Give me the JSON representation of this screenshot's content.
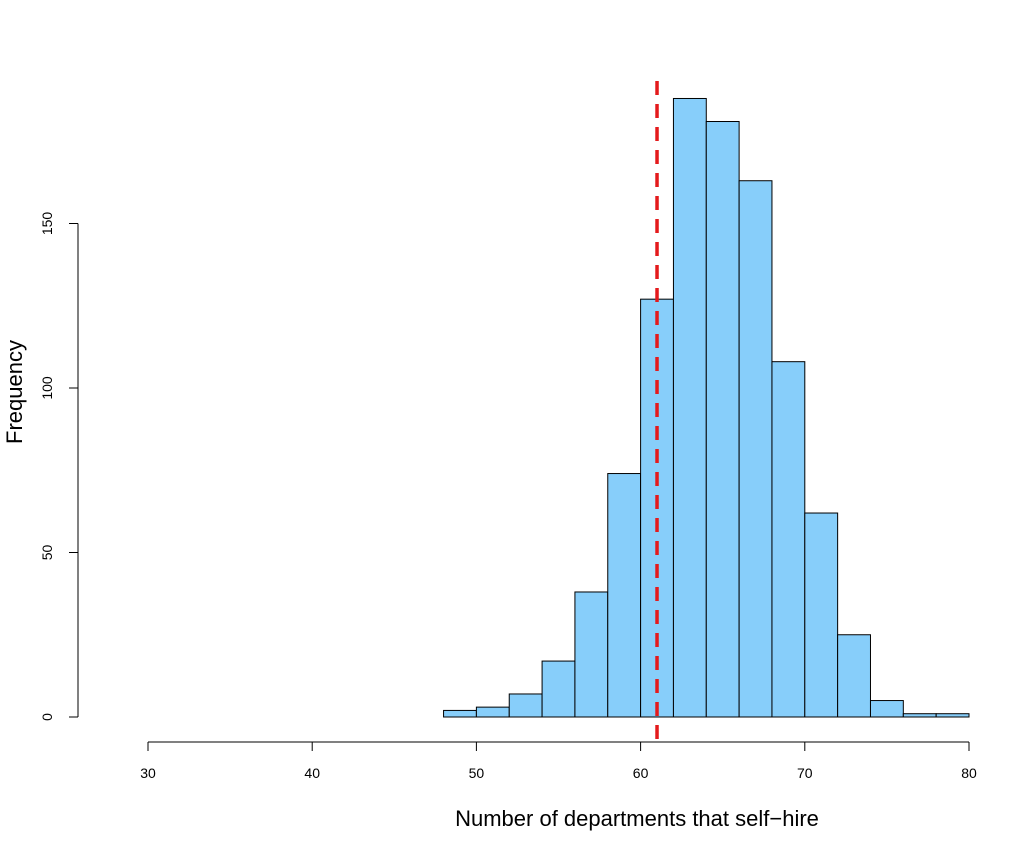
{
  "chart_data": {
    "type": "bar",
    "subtype": "histogram",
    "title": "",
    "xlabel": "Number of departments that self−hire",
    "ylabel": "Frequency",
    "bin_width": 2,
    "bins": [
      {
        "start": 48,
        "end": 50,
        "value": 2
      },
      {
        "start": 50,
        "end": 52,
        "value": 3
      },
      {
        "start": 52,
        "end": 54,
        "value": 7
      },
      {
        "start": 54,
        "end": 56,
        "value": 17
      },
      {
        "start": 56,
        "end": 58,
        "value": 38
      },
      {
        "start": 58,
        "end": 60,
        "value": 74
      },
      {
        "start": 60,
        "end": 62,
        "value": 127
      },
      {
        "start": 62,
        "end": 64,
        "value": 188
      },
      {
        "start": 64,
        "end": 66,
        "value": 181
      },
      {
        "start": 66,
        "end": 68,
        "value": 163
      },
      {
        "start": 68,
        "end": 70,
        "value": 108
      },
      {
        "start": 70,
        "end": 72,
        "value": 62
      },
      {
        "start": 72,
        "end": 74,
        "value": 25
      },
      {
        "start": 74,
        "end": 76,
        "value": 5
      },
      {
        "start": 76,
        "end": 78,
        "value": 1
      },
      {
        "start": 78,
        "end": 80,
        "value": 1
      }
    ],
    "xlim": [
      30,
      80
    ],
    "ylim": [
      0,
      190
    ],
    "x_ticks": [
      {
        "value": 30,
        "label": "30"
      },
      {
        "value": 40,
        "label": "40"
      },
      {
        "value": 50,
        "label": "50"
      },
      {
        "value": 60,
        "label": "60"
      },
      {
        "value": 70,
        "label": "70"
      },
      {
        "value": 80,
        "label": "80"
      }
    ],
    "y_ticks": [
      {
        "value": 0,
        "label": "0"
      },
      {
        "value": 50,
        "label": "50"
      },
      {
        "value": 100,
        "label": "100"
      },
      {
        "value": 150,
        "label": "150"
      }
    ],
    "reference_line": {
      "x": 61,
      "style": "dashed",
      "color": "#e41a1c"
    },
    "bar_color": "#87cefa",
    "bar_edge_color": "#000000",
    "grid": false,
    "legend": "none"
  }
}
